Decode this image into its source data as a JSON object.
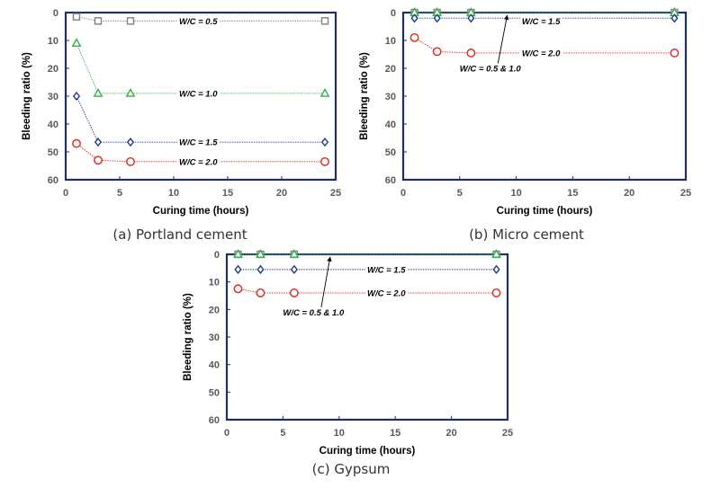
{
  "colors": {
    "wc05": "#7f7f7f",
    "wc10": "#33b04a",
    "wc15": "#1f3a8a",
    "wc20": "#e0251b",
    "frame": "#1f2f6b"
  },
  "chart_data": [
    {
      "type": "scatter",
      "caption": "(a) Portland cement",
      "xlabel": "Curing time (hours)",
      "ylabel": "Bleeding ratio (%)",
      "xlim": [
        0,
        25
      ],
      "ylim": [
        0,
        60
      ],
      "y_inverted": true,
      "grid": false,
      "xticks": [
        "0",
        "5",
        "10",
        "15",
        "20",
        "25"
      ],
      "yticks": [
        "0",
        "10",
        "20",
        "30",
        "40",
        "50",
        "60"
      ],
      "series": [
        {
          "key": "wc05",
          "marker": "square",
          "x": [
            1,
            3,
            6,
            24
          ],
          "y": [
            1.5,
            3,
            3,
            3
          ]
        },
        {
          "key": "wc10",
          "marker": "triangle",
          "x": [
            1,
            3,
            6,
            24
          ],
          "y": [
            11,
            29,
            29,
            29
          ]
        },
        {
          "key": "wc15",
          "marker": "diamond",
          "x": [
            1,
            3,
            6,
            24
          ],
          "y": [
            30,
            46.5,
            46.5,
            46.5
          ]
        },
        {
          "key": "wc20",
          "marker": "circle",
          "x": [
            1,
            3,
            6,
            24
          ],
          "y": [
            47,
            53,
            53.5,
            53.5
          ]
        }
      ],
      "annotations": [
        {
          "text": "W/C = 0.5",
          "x": 10.5,
          "y": 3
        },
        {
          "text": "W/C = 1.0",
          "x": 10.5,
          "y": 29
        },
        {
          "text": "W/C = 1.5",
          "x": 10.5,
          "y": 46.5
        },
        {
          "text": "W/C = 2.0",
          "x": 10.5,
          "y": 53.5
        }
      ]
    },
    {
      "type": "scatter",
      "caption": "(b) Micro cement",
      "xlabel": "Curing time (hours)",
      "ylabel": "Bleeding ratio (%)",
      "xlim": [
        0,
        25
      ],
      "ylim": [
        0,
        60
      ],
      "y_inverted": true,
      "grid": false,
      "xticks": [
        "0",
        "5",
        "10",
        "15",
        "20",
        "25"
      ],
      "yticks": [
        "0",
        "10",
        "20",
        "30",
        "40",
        "50",
        "60"
      ],
      "series": [
        {
          "key": "wc05",
          "marker": "square",
          "x": [
            1,
            3,
            6,
            24
          ],
          "y": [
            0,
            0,
            0,
            0
          ]
        },
        {
          "key": "wc10",
          "marker": "triangle",
          "x": [
            1,
            3,
            6,
            24
          ],
          "y": [
            0,
            0,
            0,
            0
          ]
        },
        {
          "key": "wc15",
          "marker": "diamond",
          "x": [
            1,
            3,
            6,
            24
          ],
          "y": [
            2,
            2,
            2,
            2
          ]
        },
        {
          "key": "wc20",
          "marker": "circle",
          "x": [
            1,
            3,
            6,
            24
          ],
          "y": [
            9,
            14,
            14.5,
            14.5
          ]
        }
      ],
      "annotations": [
        {
          "text": "W/C = 1.5",
          "x": 10.5,
          "y": 3
        },
        {
          "text": "W/C = 2.0",
          "x": 10.5,
          "y": 14.5
        },
        {
          "text": "W/C = 0.5 & 1.0",
          "x": 5,
          "y": 20,
          "arrow_to": [
            9.2,
            0
          ]
        }
      ]
    },
    {
      "type": "scatter",
      "caption": "(c) Gypsum",
      "xlabel": "Curing time (hours)",
      "ylabel": "Bleeding ratio (%)",
      "xlim": [
        0,
        25
      ],
      "ylim": [
        0,
        60
      ],
      "y_inverted": true,
      "grid": false,
      "xticks": [
        "0",
        "5",
        "10",
        "15",
        "20",
        "25"
      ],
      "yticks": [
        "0",
        "10",
        "20",
        "30",
        "40",
        "50",
        "60"
      ],
      "series": [
        {
          "key": "wc05",
          "marker": "square",
          "x": [
            1,
            3,
            6,
            24
          ],
          "y": [
            0,
            0,
            0,
            0
          ]
        },
        {
          "key": "wc10",
          "marker": "triangle",
          "x": [
            1,
            3,
            6,
            24
          ],
          "y": [
            0,
            0,
            0,
            0
          ]
        },
        {
          "key": "wc15",
          "marker": "diamond",
          "x": [
            1,
            3,
            6,
            24
          ],
          "y": [
            5.5,
            5.5,
            5.5,
            5.5
          ]
        },
        {
          "key": "wc20",
          "marker": "circle",
          "x": [
            1,
            3,
            6,
            24
          ],
          "y": [
            12.5,
            14,
            14,
            14
          ]
        }
      ],
      "annotations": [
        {
          "text": "W/C = 1.5",
          "x": 12.5,
          "y": 5.5
        },
        {
          "text": "W/C = 2.0",
          "x": 12.5,
          "y": 14
        },
        {
          "text": "W/C = 0.5 & 1.0",
          "x": 5,
          "y": 21,
          "arrow_to": [
            9.2,
            0
          ]
        }
      ]
    }
  ]
}
